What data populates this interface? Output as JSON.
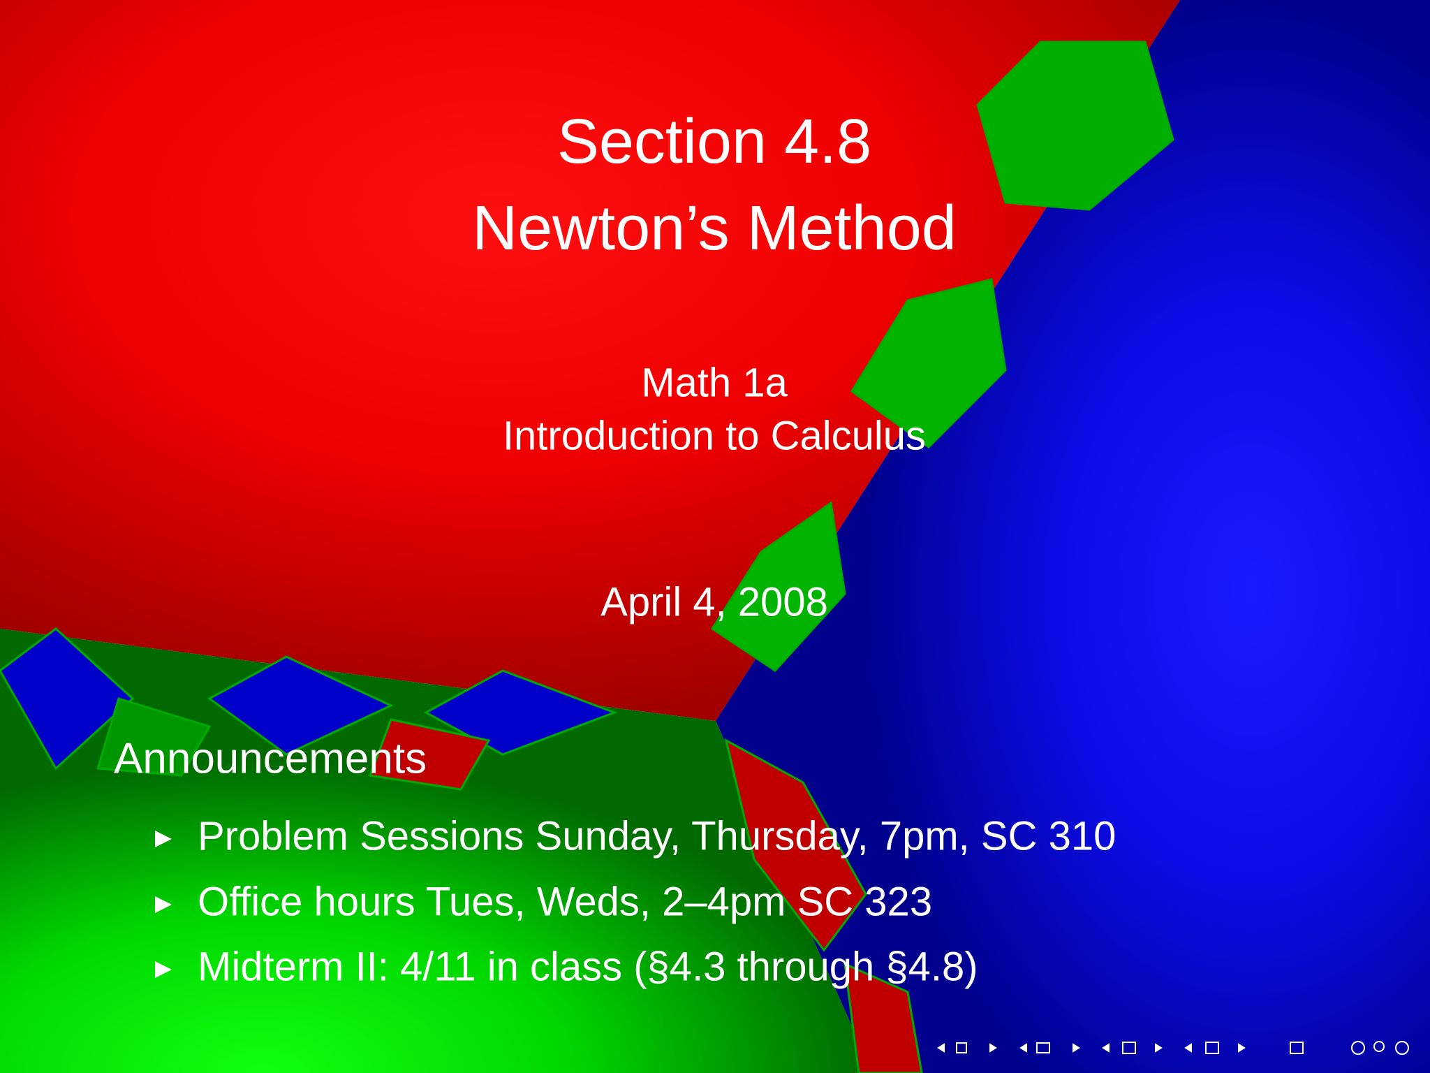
{
  "title": {
    "line1": "Section 4.8",
    "line2": "Newton’s Method"
  },
  "subtitle": {
    "line1": "Math 1a",
    "line2": "Introduction to Calculus"
  },
  "date": "April 4, 2008",
  "announcements": {
    "heading": "Announcements",
    "items": [
      "Problem Sessions Sunday, Thursday, 7pm, SC 310",
      "Office hours Tues, Weds, 2–4pm SC 323",
      "Midterm II: 4/11 in class (§4.3 through §4.8)"
    ]
  }
}
